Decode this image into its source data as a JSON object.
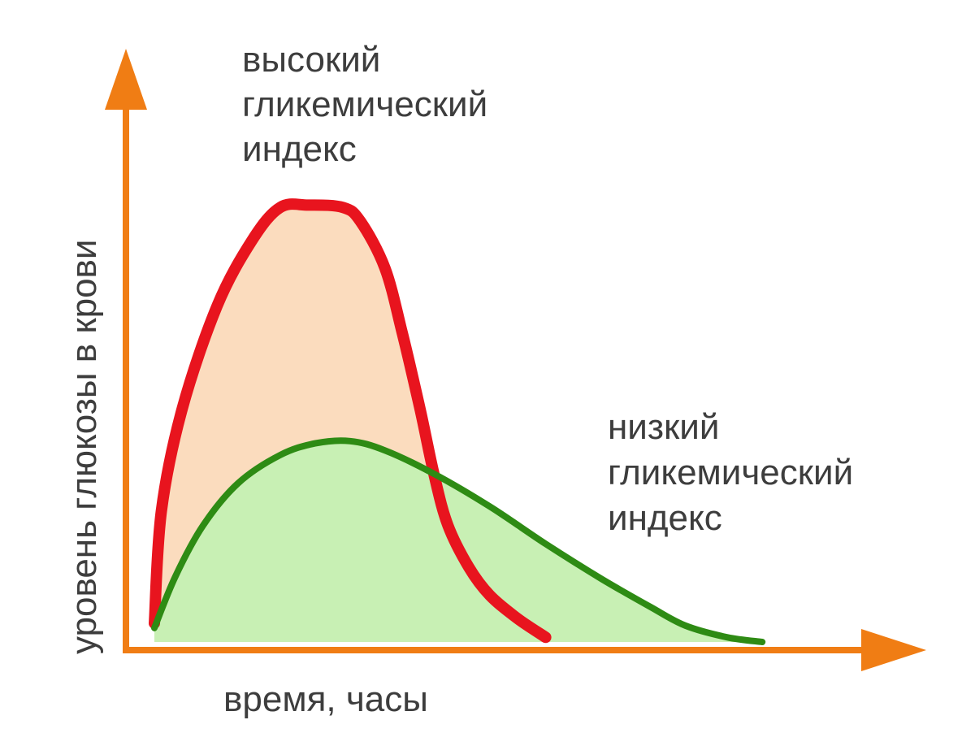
{
  "chart_data": {
    "type": "area",
    "xlabel": "время, часы",
    "ylabel": "уровень глюкозы в крови",
    "xlim": [
      0,
      10
    ],
    "ylim": [
      0,
      10
    ],
    "grid": false,
    "axis_color": "#f07d14",
    "series": [
      {
        "name_lines": [
          "высокий",
          "гликемический",
          "индекс"
        ],
        "line_color": "#e8141e",
        "fill_color": "#fbdcbe",
        "x": [
          0.0,
          0.1,
          0.4,
          0.9,
          1.4,
          1.8,
          2.2,
          2.7,
          2.95,
          3.3,
          3.55,
          3.8,
          4.0,
          4.2,
          4.5,
          4.8,
          5.2,
          5.6
        ],
        "values": [
          0.4,
          2.8,
          5.0,
          7.2,
          8.6,
          9.3,
          9.35,
          9.3,
          9.0,
          8.0,
          6.6,
          5.0,
          3.6,
          2.5,
          1.6,
          1.0,
          0.5,
          0.1
        ]
      },
      {
        "name_lines": [
          "низкий",
          "гликемический",
          "индекс"
        ],
        "line_color": "#2e8b14",
        "fill_color": "#c8f0b4",
        "x": [
          0.0,
          0.3,
          0.7,
          1.2,
          1.8,
          2.3,
          2.8,
          3.3,
          4.0,
          4.8,
          5.6,
          6.4,
          7.1,
          7.6,
          8.2,
          8.7
        ],
        "values": [
          0.3,
          1.4,
          2.5,
          3.4,
          4.0,
          4.25,
          4.3,
          4.1,
          3.6,
          2.9,
          2.1,
          1.35,
          0.75,
          0.35,
          0.1,
          0.0
        ]
      }
    ]
  }
}
